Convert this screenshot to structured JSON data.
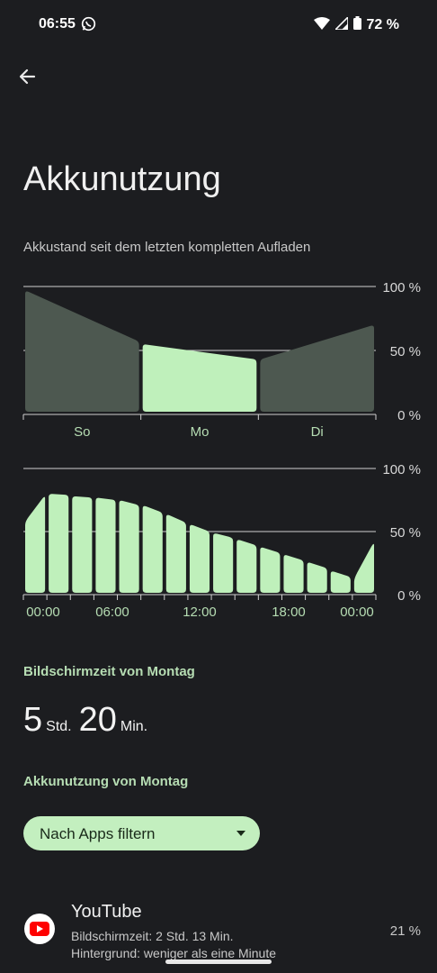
{
  "status_bar": {
    "time": "06:55",
    "battery_text": "72 %"
  },
  "header": {
    "title": "Akkunutzung"
  },
  "summary": {
    "subtitle": "Akkustand seit dem letzten kompletten Aufladen"
  },
  "chart_data": [
    {
      "type": "area",
      "y_tick_labels": [
        "100 %",
        "50 %",
        "0 %"
      ],
      "ylim": [
        0,
        100
      ],
      "categories": [
        "So",
        "Mo",
        "Di"
      ],
      "segments": [
        {
          "label": "So",
          "start": 97,
          "end": 57,
          "highlighted": false
        },
        {
          "label": "Mo",
          "start": 55,
          "end": 43,
          "highlighted": true
        },
        {
          "label": "Di",
          "start": 43,
          "end": 70,
          "highlighted": false
        }
      ],
      "colors": {
        "dim": "#4d5850",
        "highlight": "#bff0bb",
        "grid": "#d0d0d0"
      }
    },
    {
      "type": "bar",
      "y_tick_labels": [
        "100 %",
        "50 %",
        "0 %"
      ],
      "ylim": [
        0,
        100
      ],
      "x_tick_labels": [
        "00:00",
        "06:00",
        "12:00",
        "18:00",
        "00:00"
      ],
      "bars": [
        {
          "start": 58,
          "end": 79
        },
        {
          "start": 80,
          "end": 79
        },
        {
          "start": 78,
          "end": 77
        },
        {
          "start": 77,
          "end": 75
        },
        {
          "start": 75,
          "end": 71
        },
        {
          "start": 71,
          "end": 65
        },
        {
          "start": 64,
          "end": 57
        },
        {
          "start": 56,
          "end": 50
        },
        {
          "start": 49,
          "end": 45
        },
        {
          "start": 44,
          "end": 39
        },
        {
          "start": 38,
          "end": 33
        },
        {
          "start": 32,
          "end": 27
        },
        {
          "start": 26,
          "end": 21
        },
        {
          "start": 19,
          "end": 14
        },
        {
          "start": 13,
          "end": 42
        }
      ],
      "colors": {
        "bar": "#bff0bb",
        "grid": "#d0d0d0"
      }
    }
  ],
  "screen_time": {
    "heading": "Bildschirmzeit von Montag",
    "hours": "5",
    "hours_unit": "Std.",
    "minutes": "20",
    "minutes_unit": "Min."
  },
  "usage": {
    "heading": "Akkunutzung von Montag",
    "filter_label": "Nach Apps filtern"
  },
  "apps": [
    {
      "name": "YouTube",
      "line1": "Bildschirmzeit: 2 Std. 13 Min.",
      "line2": "Hintergrund: weniger als eine Minute",
      "percent": "21 %"
    }
  ]
}
